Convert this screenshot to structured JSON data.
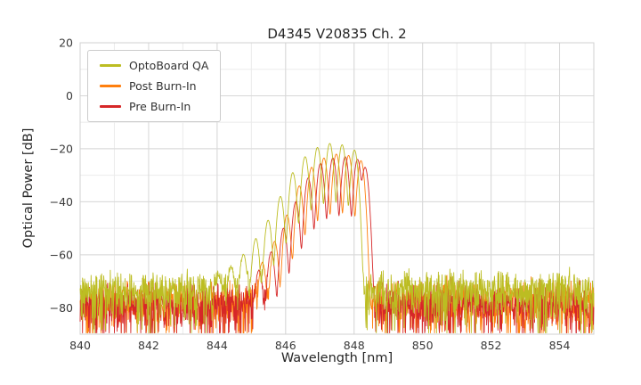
{
  "chart_data": {
    "type": "line",
    "title": "D4345 V20835 Ch. 2",
    "xlabel": "Wavelength [nm]",
    "ylabel": "Optical Power [dB]",
    "xlim": [
      840,
      855
    ],
    "ylim": [
      -90,
      20
    ],
    "xticks": {
      "values": [
        840,
        842,
        844,
        846,
        848,
        850,
        852,
        854
      ],
      "labels": [
        "840",
        "842",
        "844",
        "846",
        "848",
        "850",
        "852",
        "854"
      ]
    },
    "yticks": {
      "values": [
        20,
        0,
        -20,
        -40,
        -60,
        -80
      ],
      "labels": [
        "20",
        "0",
        "−20",
        "−40",
        "−60",
        "−80"
      ]
    },
    "grid": {
      "major_color": "#d8d8d8",
      "minor_color": "#ebebeb",
      "x_minor_step": 1,
      "y_minor_step": 10,
      "border_color": "#d0d0d0"
    },
    "legend": {
      "position": "upper-left"
    },
    "sampling": {
      "x_step": 0.01,
      "mode_width_nm": 0.075,
      "seed": 42
    },
    "series": [
      {
        "name": "OptoBoard QA",
        "color": "#bcbd22",
        "noise_floor_db": -72.5,
        "modes": [
          [
            844.05,
            -69
          ],
          [
            844.41,
            -65
          ],
          [
            844.77,
            -60
          ],
          [
            845.13,
            -54
          ],
          [
            845.49,
            -47
          ],
          [
            845.85,
            -38
          ],
          [
            846.21,
            -29
          ],
          [
            846.57,
            -23
          ],
          [
            846.93,
            -19.5
          ],
          [
            847.29,
            -18
          ],
          [
            847.65,
            -18.5
          ],
          [
            848.01,
            -20.5
          ]
        ]
      },
      {
        "name": "Post Burn-In",
        "color": "#ff7f0e",
        "noise_floor_db": -77,
        "modes": [
          [
            845.32,
            -63
          ],
          [
            845.68,
            -55
          ],
          [
            846.04,
            -45
          ],
          [
            846.4,
            -34
          ],
          [
            846.76,
            -27
          ],
          [
            847.12,
            -23.5
          ],
          [
            847.48,
            -22
          ],
          [
            847.84,
            -22.5
          ],
          [
            848.2,
            -24.5
          ]
        ]
      },
      {
        "name": "Pre Burn-In",
        "color": "#d62728",
        "noise_floor_db": -77.5,
        "modes": [
          [
            845.22,
            -66
          ],
          [
            845.58,
            -59
          ],
          [
            845.94,
            -50
          ],
          [
            846.3,
            -40
          ],
          [
            846.66,
            -31
          ],
          [
            847.02,
            -25.5
          ],
          [
            847.38,
            -23.5
          ],
          [
            847.74,
            -23
          ],
          [
            848.1,
            -24
          ],
          [
            848.32,
            -27
          ]
        ]
      }
    ],
    "draw_order": [
      1,
      2,
      0
    ]
  }
}
